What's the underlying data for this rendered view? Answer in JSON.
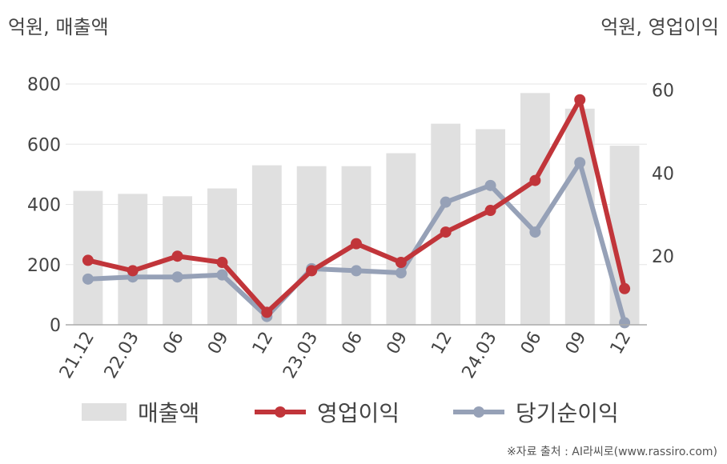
{
  "units": {
    "left": "억원, 매출액",
    "right": "억원, 영업이익"
  },
  "source": "※자료 출처 : AI라씨로(www.rassiro.com)",
  "colors": {
    "bar": "#e0e0e0",
    "operating": "#c1353a",
    "net": "#96a1b7",
    "grid": "#e6e6e6",
    "axis": "#aaaaaa"
  },
  "chart_data": {
    "type": "bar+line",
    "categories": [
      "21.12",
      "22.03",
      "06",
      "09",
      "12",
      "23.03",
      "06",
      "09",
      "12",
      "24.03",
      "06",
      "09",
      "12"
    ],
    "y_left": {
      "ticks": [
        0,
        200,
        400,
        600,
        800
      ],
      "range": [
        0,
        800
      ]
    },
    "y_right": {
      "ticks": [
        20,
        40,
        60
      ],
      "range": [
        3.5,
        61.4
      ]
    },
    "series": [
      {
        "name": "매출액",
        "kind": "bar",
        "axis": "left",
        "values": [
          445,
          435,
          427,
          453,
          530,
          527,
          527,
          570,
          668,
          650,
          770,
          718,
          595
        ]
      },
      {
        "name": "영업이익",
        "kind": "line",
        "axis": "right",
        "values": [
          19.0,
          16.5,
          20.0,
          18.5,
          6.5,
          16.5,
          23.0,
          18.5,
          25.8,
          31.0,
          38.2,
          57.6,
          12.2
        ]
      },
      {
        "name": "당기순이익",
        "kind": "line",
        "axis": "right",
        "values": [
          14.5,
          15.0,
          15.0,
          15.5,
          5.5,
          17.0,
          16.5,
          16.0,
          33.0,
          37.0,
          25.8,
          42.5,
          4.0
        ]
      }
    ]
  }
}
